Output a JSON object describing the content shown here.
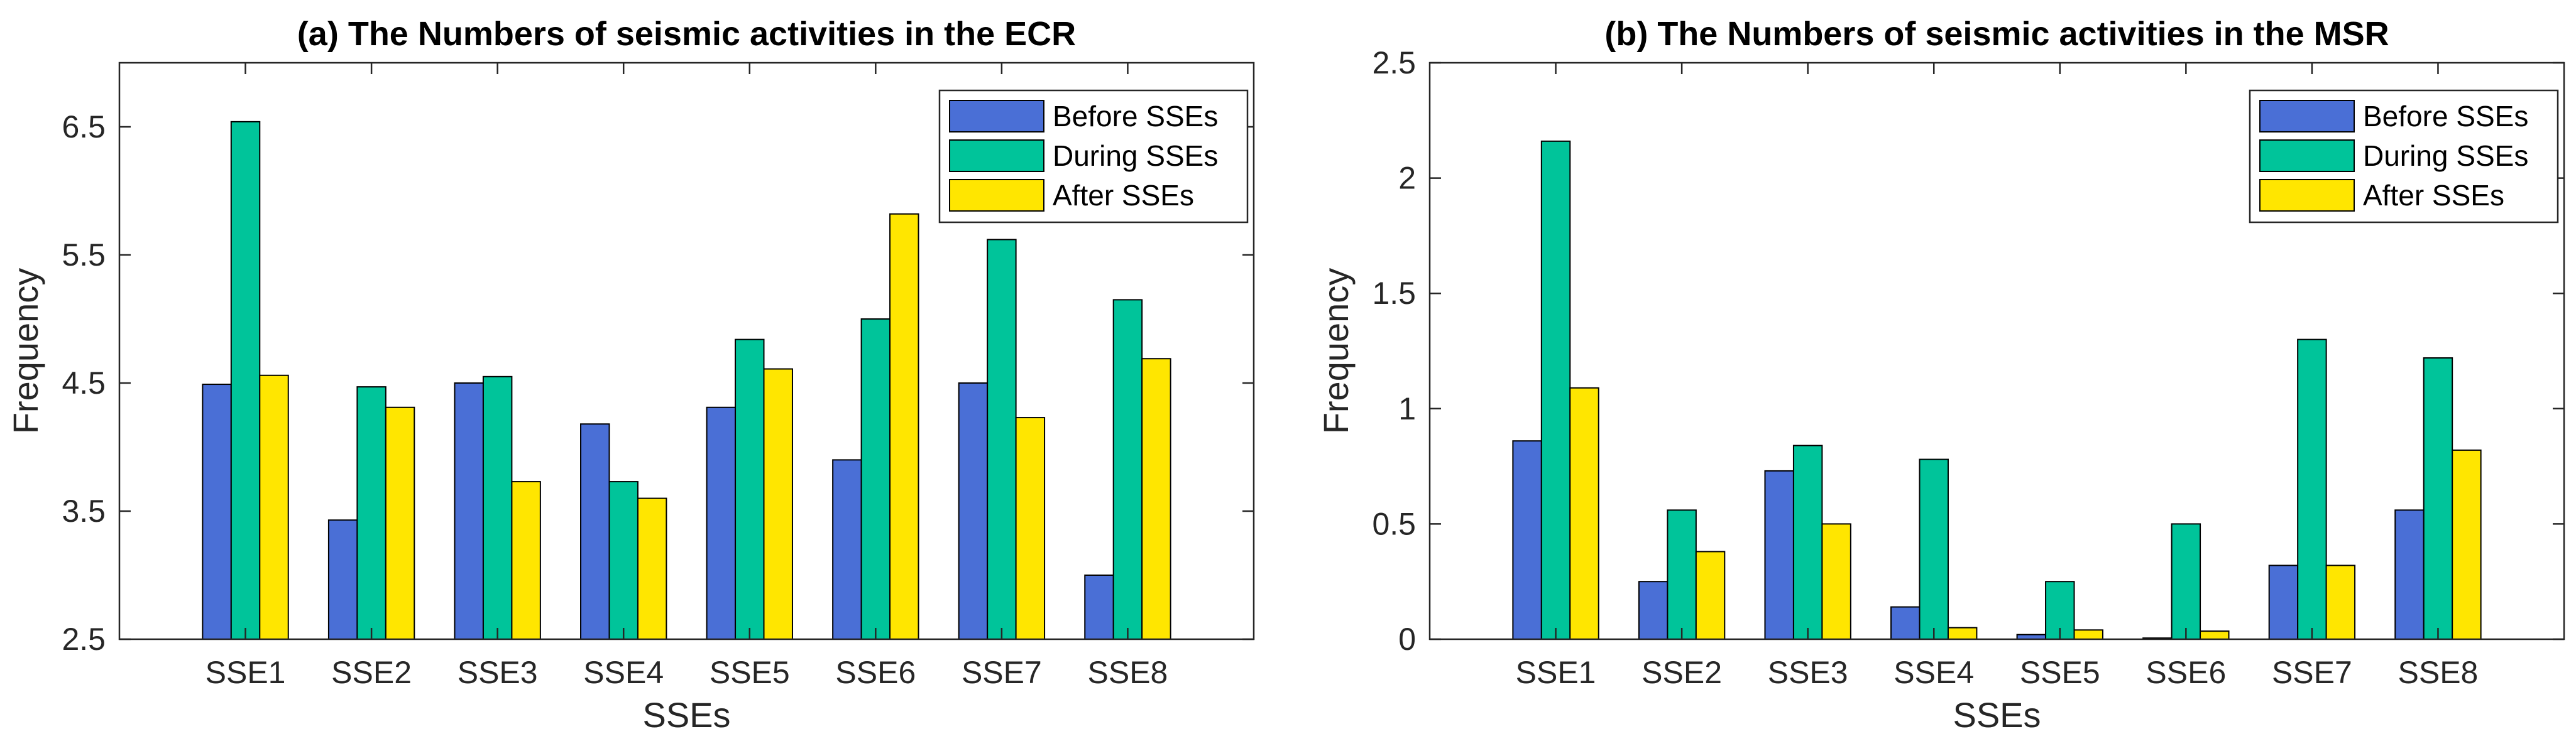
{
  "chart_data": [
    {
      "type": "bar",
      "title": "(a) The Numbers of seismic activities in the ECR",
      "xlabel": "SSEs",
      "ylabel": "Frequency",
      "ylim": [
        2.5,
        7.0
      ],
      "yticks": [
        2.5,
        3.5,
        4.5,
        5.5,
        6.5
      ],
      "ytick_labels": [
        "2.5",
        "3.5",
        "4.5",
        "5.5",
        "6.5"
      ],
      "categories": [
        "SSE1",
        "SSE2",
        "SSE3",
        "SSE4",
        "SSE5",
        "SSE6",
        "SSE7",
        "SSE8"
      ],
      "legend_position": "top-right",
      "grid": false,
      "series": [
        {
          "name": "Before SSEs",
          "color": "#4a6fd6",
          "values": [
            4.49,
            3.43,
            4.5,
            4.18,
            4.31,
            3.9,
            4.5,
            3.0
          ]
        },
        {
          "name": "During SSEs",
          "color": "#00c49a",
          "values": [
            6.54,
            4.47,
            4.55,
            3.73,
            4.84,
            5.0,
            5.62,
            5.15
          ]
        },
        {
          "name": "After SSEs",
          "color": "#ffe600",
          "values": [
            4.56,
            4.31,
            3.73,
            3.6,
            4.61,
            5.82,
            4.23,
            4.69
          ]
        }
      ]
    },
    {
      "type": "bar",
      "title": "(b) The Numbers of seismic activities in the MSR",
      "xlabel": "SSEs",
      "ylabel": "Frequency",
      "ylim": [
        0,
        2.5
      ],
      "yticks": [
        0,
        0.5,
        1,
        1.5,
        2,
        2.5
      ],
      "ytick_labels": [
        "0",
        "0.5",
        "1",
        "1.5",
        "2",
        "2.5"
      ],
      "categories": [
        "SSE1",
        "SSE2",
        "SSE3",
        "SSE4",
        "SSE5",
        "SSE6",
        "SSE7",
        "SSE8"
      ],
      "legend_position": "top-right",
      "grid": false,
      "series": [
        {
          "name": "Before SSEs",
          "color": "#4a6fd6",
          "values": [
            0.86,
            0.25,
            0.73,
            0.14,
            0.02,
            0.005,
            0.32,
            0.56
          ]
        },
        {
          "name": "During SSEs",
          "color": "#00c49a",
          "values": [
            2.16,
            0.56,
            0.84,
            0.78,
            0.25,
            0.5,
            1.3,
            1.22
          ]
        },
        {
          "name": "After SSEs",
          "color": "#ffe600",
          "values": [
            1.09,
            0.38,
            0.5,
            0.05,
            0.04,
            0.035,
            0.32,
            0.82
          ]
        }
      ]
    }
  ]
}
